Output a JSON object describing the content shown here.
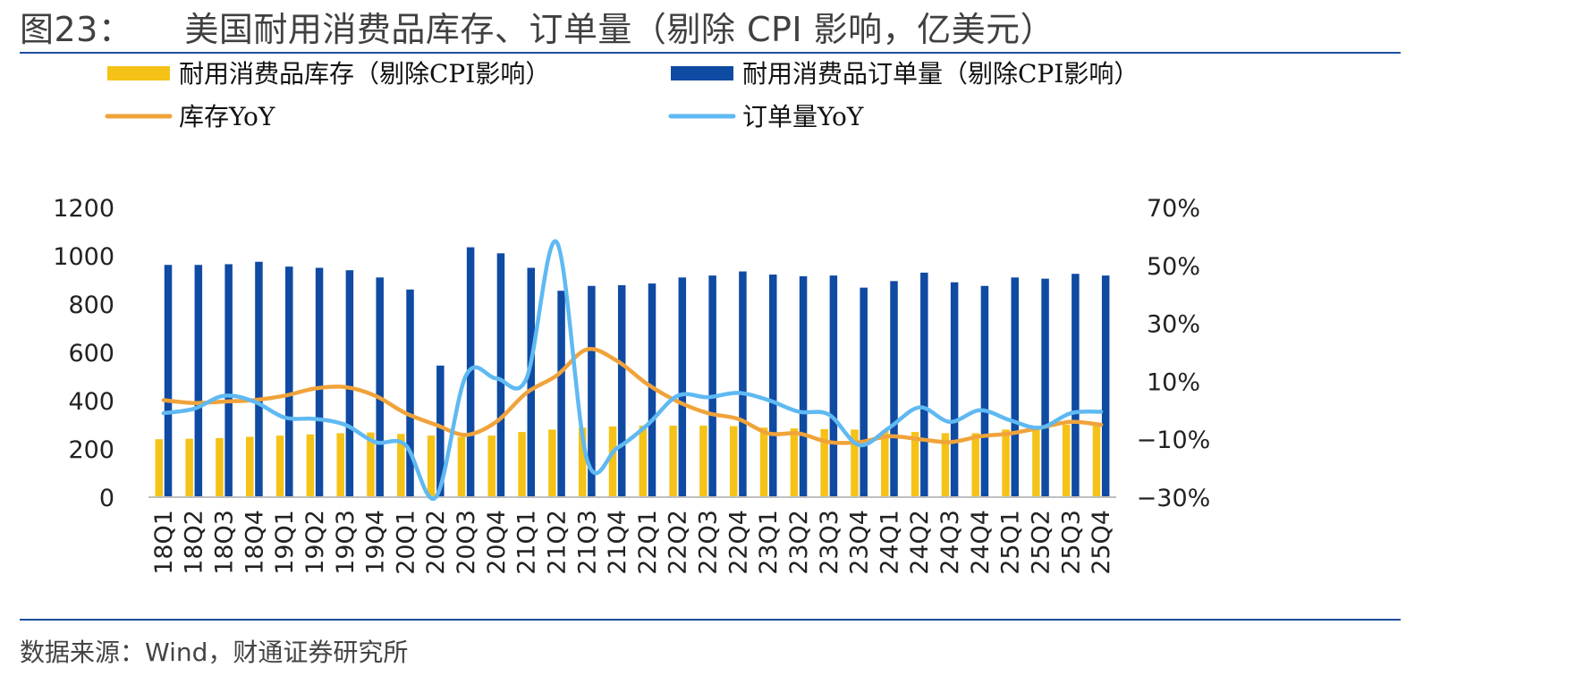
{
  "figure": {
    "number": "图23：",
    "title": "美国耐用消费品库存、订单量（剔除 CPI 影响，亿美元）",
    "source": "数据来源：Wind，财通证券研究所"
  },
  "chart_data": {
    "type": "bar",
    "categories": [
      "18Q1",
      "18Q2",
      "18Q3",
      "18Q4",
      "19Q1",
      "19Q2",
      "19Q3",
      "19Q4",
      "20Q1",
      "20Q2",
      "20Q3",
      "20Q4",
      "21Q1",
      "21Q2",
      "21Q3",
      "21Q4",
      "22Q1",
      "22Q2",
      "22Q3",
      "22Q4",
      "23Q1",
      "23Q2",
      "23Q3",
      "23Q4",
      "24Q1",
      "24Q2",
      "24Q3",
      "24Q4",
      "25Q1",
      "25Q2",
      "25Q3",
      "25Q4"
    ],
    "series": [
      {
        "name": "耐用消费品库存（剔除CPI影响）",
        "kind": "bar",
        "axis": "left",
        "color": "#f5c218",
        "values": [
          240,
          242,
          245,
          250,
          255,
          260,
          265,
          268,
          262,
          255,
          250,
          255,
          270,
          280,
          288,
          293,
          296,
          296,
          296,
          294,
          288,
          285,
          282,
          280,
          275,
          270,
          265,
          265,
          280,
          290,
          300,
          305
        ]
      },
      {
        "name": "耐用消费品订单量（剔除CPI影响）",
        "kind": "bar",
        "axis": "left",
        "color": "#0f4aa3",
        "values": [
          962,
          962,
          965,
          975,
          955,
          950,
          940,
          910,
          860,
          545,
          1035,
          1010,
          950,
          855,
          875,
          878,
          885,
          910,
          918,
          935,
          922,
          915,
          918,
          868,
          895,
          930,
          890,
          875,
          910,
          905,
          925,
          918
        ]
      },
      {
        "name": "库存YoY",
        "kind": "line",
        "axis": "right",
        "color": "#f0a33a",
        "values": [
          3.5,
          2.5,
          3,
          3.5,
          5,
          7.5,
          8,
          5,
          -1,
          -5,
          -8.5,
          -4,
          6,
          12,
          21,
          17,
          9,
          3,
          -1,
          -3,
          -8,
          -8,
          -11,
          -11,
          -9,
          -10,
          -11,
          -9,
          -8,
          -6,
          -4,
          -5
        ]
      },
      {
        "name": "订单量YoY",
        "kind": "line",
        "axis": "right",
        "color": "#5fb9f2",
        "values": [
          -1,
          0.5,
          5,
          3,
          -2.5,
          -3,
          -5,
          -11,
          -12,
          -30,
          12,
          11,
          11,
          58,
          -17,
          -13,
          -5,
          5,
          4.5,
          6,
          3.5,
          -0.5,
          -1.5,
          -12,
          -6,
          1,
          -4,
          0,
          -3.5,
          -6,
          -1,
          -0.5
        ]
      }
    ],
    "y_left": {
      "min": 0,
      "max": 1200,
      "ticks": [
        "0",
        "200",
        "400",
        "600",
        "800",
        "1000",
        "1200"
      ]
    },
    "y_right": {
      "min": -30,
      "max": 70,
      "ticks": [
        "−30%",
        "−10%",
        "10%",
        "30%",
        "50%",
        "70%"
      ]
    },
    "legend": "top",
    "grid": false
  }
}
